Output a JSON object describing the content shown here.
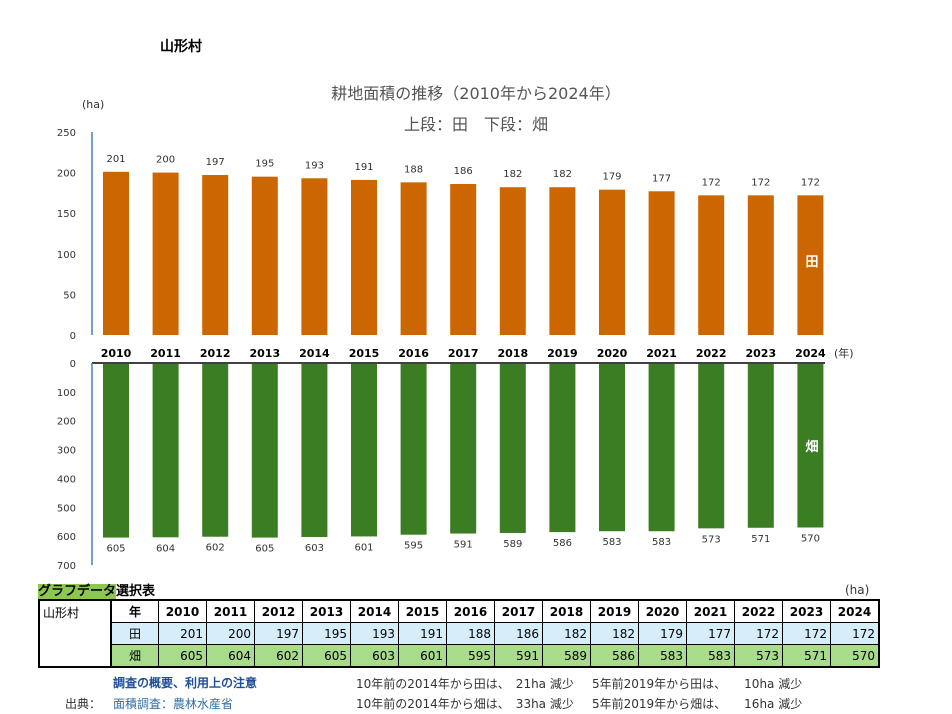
{
  "village": "山形村",
  "chart_data": [
    {
      "type": "bar",
      "title": "耕地面積の推移（2010年から2024年）",
      "subtitle": "上段：田　下段：畑",
      "ylabel": "(ha)",
      "xlabel": "(年)",
      "series_label": "田",
      "color": "#cc6600",
      "categories": [
        "2010",
        "2011",
        "2012",
        "2013",
        "2014",
        "2015",
        "2016",
        "2017",
        "2018",
        "2019",
        "2020",
        "2021",
        "2022",
        "2023",
        "2024"
      ],
      "values": [
        201,
        200,
        197,
        195,
        193,
        191,
        188,
        186,
        182,
        182,
        179,
        177,
        172,
        172,
        172
      ],
      "ylim": [
        0,
        250
      ],
      "yticks": [
        "0",
        "50",
        "100",
        "150",
        "200",
        "250"
      ]
    },
    {
      "type": "bar",
      "series_label": "畑",
      "color": "#3a7d23",
      "inverted": true,
      "categories": [
        "2010",
        "2011",
        "2012",
        "2013",
        "2014",
        "2015",
        "2016",
        "2017",
        "2018",
        "2019",
        "2020",
        "2021",
        "2022",
        "2023",
        "2024"
      ],
      "values": [
        605,
        604,
        602,
        605,
        603,
        601,
        595,
        591,
        589,
        586,
        583,
        583,
        573,
        571,
        570
      ],
      "ylim": [
        0,
        700
      ],
      "yticks": [
        "0",
        "100",
        "200",
        "300",
        "400",
        "500",
        "600",
        "700"
      ]
    }
  ],
  "table": {
    "title_hl": "グラフデータ",
    "title_rest": "選択表",
    "unit": "(ha)",
    "year_label": "年",
    "row1": "田",
    "row2": "畑"
  },
  "footer": {
    "link1": "調査の概要、利用上の注意",
    "source_label": "出典：",
    "link2": "面積調査：農林水産省",
    "line1a": "10年前の2014年から田は、　21ha 減少",
    "line1b": "5年前2019年から田は、　　10ha 減少",
    "line2a": "10年前の2014年から畑は、　33ha 減少",
    "line2b": "5年前2019年から畑は、　　16ha 減少"
  }
}
